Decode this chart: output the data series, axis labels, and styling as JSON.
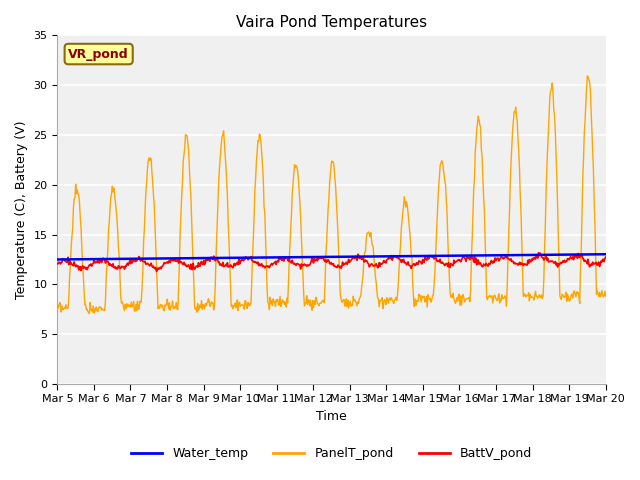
{
  "title": "Vaira Pond Temperatures",
  "xlabel": "Time",
  "ylabel": "Temperature (C), Battery (V)",
  "ylim": [
    0,
    35
  ],
  "yticks": [
    0,
    5,
    10,
    15,
    20,
    25,
    30,
    35
  ],
  "xtick_labels": [
    "Mar 5",
    "Mar 6",
    "Mar 7",
    "Mar 8",
    "Mar 9",
    "Mar 10",
    "Mar 11",
    "Mar 12",
    "Mar 13",
    "Mar 14",
    "Mar 15",
    "Mar 16",
    "Mar 17",
    "Mar 18",
    "Mar 19",
    "Mar 20"
  ],
  "fig_bg": "#ffffff",
  "plot_bg": "#f0f0f0",
  "grid_color": "#ffffff",
  "legend_items": [
    "Water_temp",
    "PanelT_pond",
    "BattV_pond"
  ],
  "legend_colors": [
    "blue",
    "orange",
    "red"
  ],
  "annotation_text": "VR_pond",
  "annotation_bg": "#ffff99",
  "annotation_border": "#8B6914",
  "title_fontsize": 11,
  "label_fontsize": 9,
  "tick_fontsize": 8
}
